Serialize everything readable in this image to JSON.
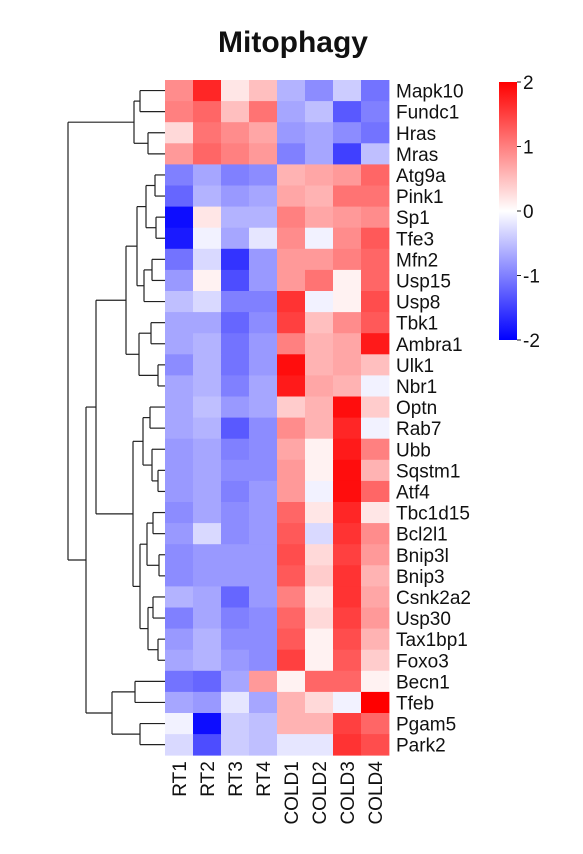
{
  "chart_data": {
    "type": "heatmap",
    "title": "Mitophagy",
    "columns": [
      "RT1",
      "RT2",
      "RT3",
      "RT4",
      "COLD1",
      "COLD2",
      "COLD3",
      "COLD4"
    ],
    "rows": [
      "Mapk10",
      "Fundc1",
      "Hras",
      "Mras",
      "Atg9a",
      "Pink1",
      "Sp1",
      "Tfe3",
      "Mfn2",
      "Usp15",
      "Usp8",
      "Tbk1",
      "Ambra1",
      "Ulk1",
      "Nbr1",
      "Optn",
      "Rab7",
      "Ubb",
      "Sqstm1",
      "Atf4",
      "Tbc1d15",
      "Bcl2l1",
      "Bnip3l",
      "Bnip3",
      "Csnk2a2",
      "Usp30",
      "Tax1bp1",
      "Foxo3",
      "Becn1",
      "Tfeb",
      "Pgam5",
      "Park2"
    ],
    "values": [
      [
        0.9,
        1.7,
        0.2,
        0.5,
        -0.6,
        -0.9,
        -0.4,
        -1.1
      ],
      [
        1.0,
        1.2,
        0.5,
        1.1,
        -0.7,
        -0.5,
        -1.3,
        -1.0
      ],
      [
        0.3,
        1.1,
        0.9,
        0.7,
        -0.8,
        -0.7,
        -0.9,
        -1.1
      ],
      [
        0.8,
        1.2,
        1.0,
        0.8,
        -1.0,
        -0.7,
        -1.5,
        -0.5
      ],
      [
        -1.0,
        -0.7,
        -1.0,
        -0.9,
        0.6,
        0.7,
        0.8,
        1.2
      ],
      [
        -1.2,
        -0.6,
        -0.8,
        -0.7,
        0.7,
        0.6,
        1.1,
        1.1
      ],
      [
        -1.9,
        0.2,
        -0.6,
        -0.6,
        1.0,
        0.7,
        0.8,
        0.9
      ],
      [
        -1.8,
        -0.1,
        -0.7,
        -0.2,
        0.9,
        -0.1,
        0.9,
        1.3
      ],
      [
        -1.1,
        -0.3,
        -1.6,
        -0.8,
        0.8,
        0.8,
        1.0,
        1.2
      ],
      [
        -0.8,
        0.1,
        -1.4,
        -0.8,
        0.8,
        1.1,
        0.1,
        1.2
      ],
      [
        -0.5,
        -0.3,
        -1.0,
        -1.0,
        1.6,
        -0.1,
        0.1,
        1.4
      ],
      [
        -0.7,
        -0.7,
        -1.2,
        -0.9,
        1.5,
        0.5,
        0.9,
        1.3
      ],
      [
        -0.7,
        -0.6,
        -1.1,
        -0.8,
        1.0,
        0.6,
        0.7,
        1.8
      ],
      [
        -0.9,
        -0.6,
        -1.1,
        -0.8,
        1.9,
        0.6,
        0.7,
        0.5
      ],
      [
        -0.7,
        -0.6,
        -1.0,
        -0.7,
        1.8,
        0.7,
        0.6,
        -0.1
      ],
      [
        -0.7,
        -0.5,
        -0.8,
        -0.7,
        0.4,
        0.6,
        1.9,
        0.4
      ],
      [
        -0.7,
        -0.6,
        -1.3,
        -0.9,
        0.9,
        0.6,
        1.7,
        -0.1
      ],
      [
        -0.8,
        -0.7,
        -1.0,
        -0.9,
        0.7,
        0.1,
        1.8,
        1.0
      ],
      [
        -0.8,
        -0.7,
        -0.9,
        -0.9,
        0.8,
        0.1,
        1.9,
        0.6
      ],
      [
        -0.8,
        -0.7,
        -1.0,
        -0.8,
        0.8,
        -0.1,
        1.9,
        1.2
      ],
      [
        -0.9,
        -0.7,
        -0.9,
        -0.8,
        1.2,
        0.2,
        1.7,
        0.2
      ],
      [
        -0.8,
        -0.3,
        -0.9,
        -0.8,
        1.3,
        -0.3,
        1.6,
        0.9
      ],
      [
        -0.9,
        -0.8,
        -0.8,
        -0.8,
        1.4,
        0.3,
        1.5,
        0.8
      ],
      [
        -0.9,
        -0.8,
        -0.8,
        -0.8,
        1.3,
        0.4,
        1.6,
        0.6
      ],
      [
        -0.6,
        -0.7,
        -1.2,
        -0.8,
        1.0,
        0.2,
        1.6,
        0.7
      ],
      [
        -1.0,
        -0.7,
        -1.0,
        -0.9,
        1.2,
        0.3,
        1.5,
        0.8
      ],
      [
        -0.8,
        -0.6,
        -0.9,
        -0.9,
        1.3,
        0.1,
        1.4,
        0.6
      ],
      [
        -0.7,
        -0.6,
        -0.8,
        -0.9,
        1.5,
        0.1,
        1.3,
        0.4
      ],
      [
        -1.1,
        -1.2,
        -0.7,
        0.8,
        0.1,
        1.2,
        1.2,
        0.1
      ],
      [
        -0.7,
        -0.8,
        -0.2,
        -0.7,
        0.6,
        0.3,
        -0.1,
        2.0
      ],
      [
        -0.1,
        -1.9,
        -0.4,
        -0.5,
        0.6,
        0.6,
        1.5,
        1.2
      ],
      [
        -0.3,
        -1.4,
        -0.4,
        -0.5,
        -0.2,
        -0.2,
        1.6,
        1.4
      ]
    ],
    "color_scale": {
      "min": -2,
      "max": 2,
      "low_color": "#0000ff",
      "mid_color": "#ffffff",
      "high_color": "#ff0000",
      "ticks": [
        2,
        1,
        0,
        -1,
        -2
      ]
    },
    "dendrogram": "rows-left",
    "legend_position": "top-right",
    "grid": false
  }
}
